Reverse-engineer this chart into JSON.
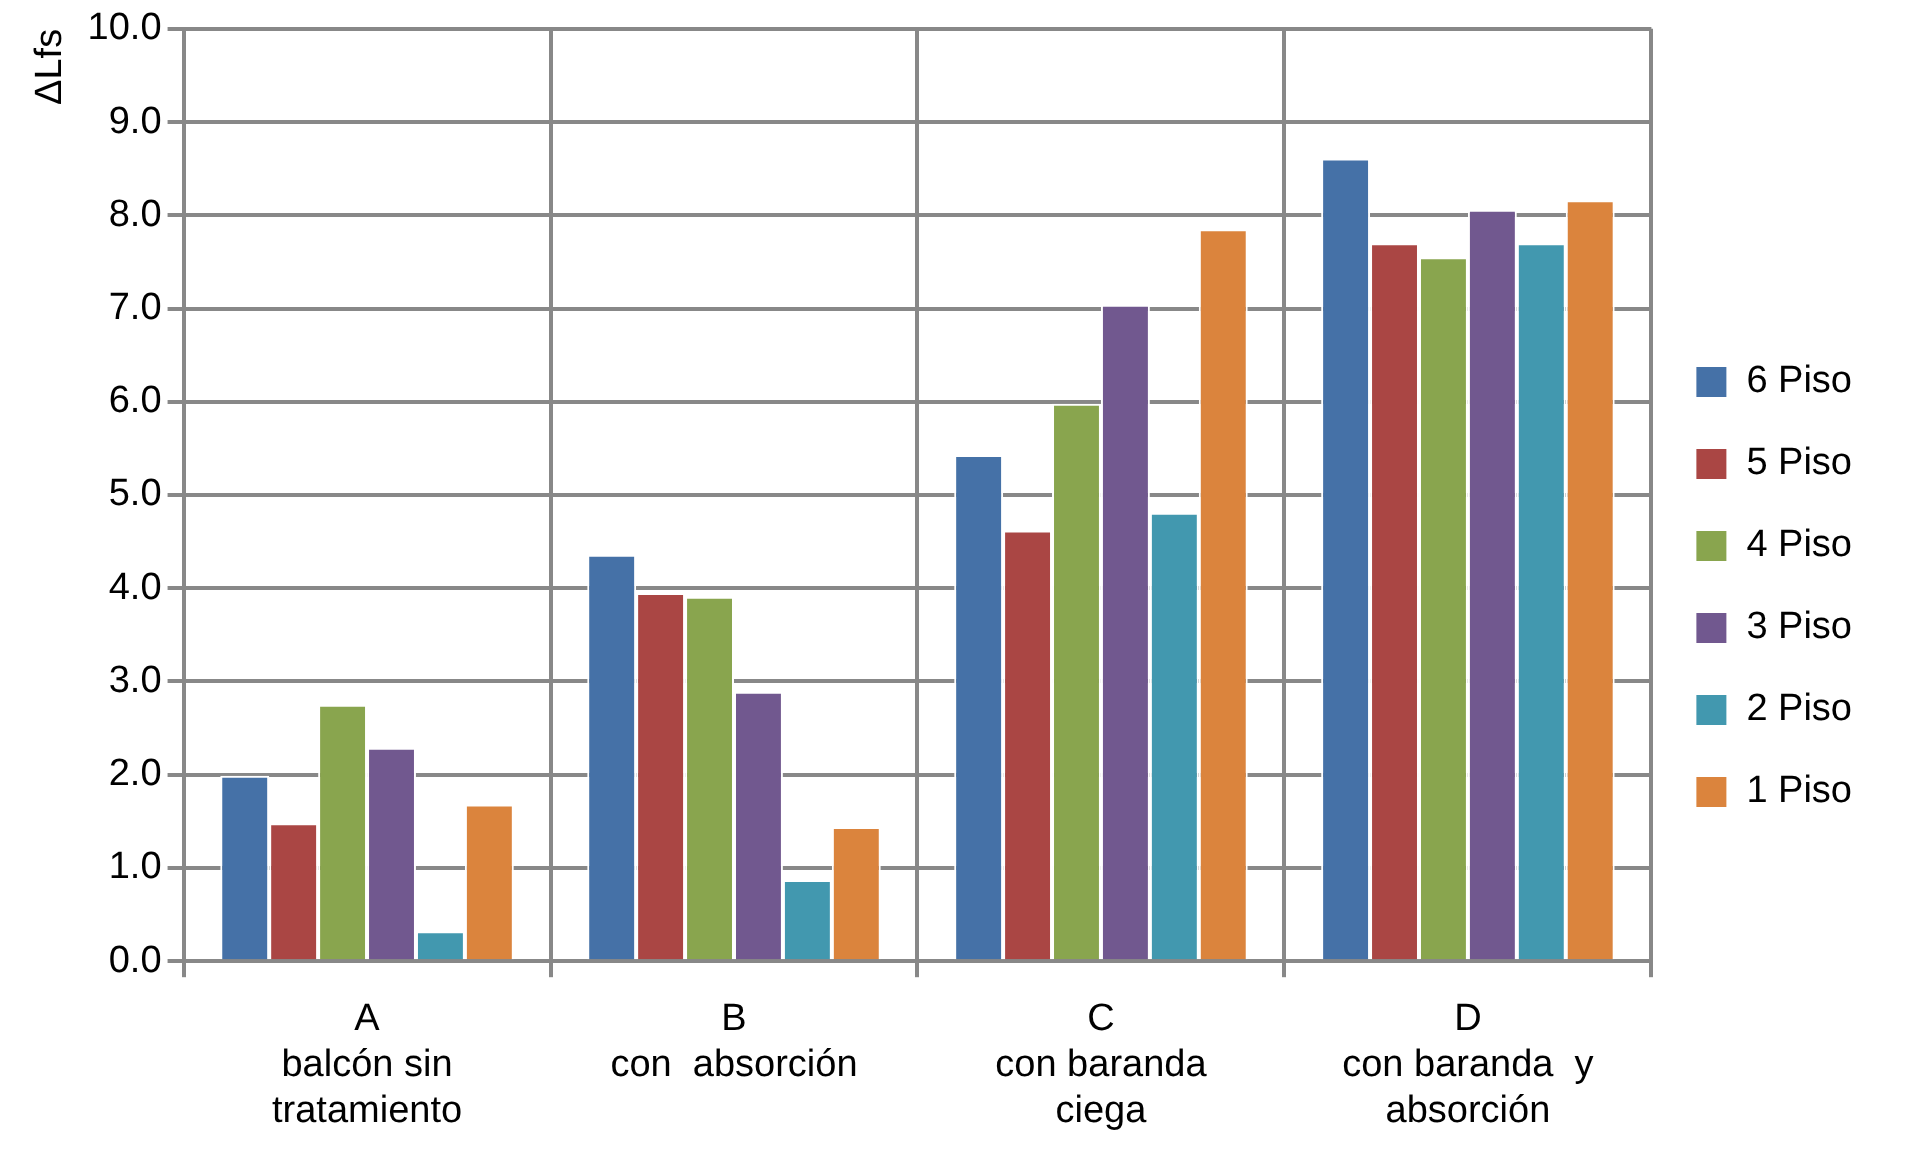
{
  "chart_data": {
    "type": "bar",
    "ylabel": "ΔLfs",
    "categories": [
      "A\nbalcón sin\ntratamiento",
      "B\ncon  absorción",
      "C\ncon baranda\nciega",
      "D\ncon baranda  y\nabsorción"
    ],
    "series": [
      {
        "name": "6 Piso",
        "color": "#4571a7",
        "values": [
          1.99,
          4.36,
          5.43,
          8.61
        ]
      },
      {
        "name": "5 Piso",
        "color": "#aa4644",
        "values": [
          1.48,
          3.95,
          4.62,
          7.7
        ]
      },
      {
        "name": "4 Piso",
        "color": "#89a54e",
        "values": [
          2.75,
          3.91,
          5.98,
          7.55
        ]
      },
      {
        "name": "3 Piso",
        "color": "#71588f",
        "values": [
          2.29,
          2.89,
          7.04,
          8.06
        ]
      },
      {
        "name": "2 Piso",
        "color": "#4298af",
        "values": [
          0.32,
          0.87,
          4.81,
          7.7
        ]
      },
      {
        "name": "1 Piso",
        "color": "#db843d",
        "values": [
          1.68,
          1.44,
          7.85,
          8.16
        ]
      }
    ],
    "ylim": [
      0,
      10
    ],
    "yticks": [
      {
        "value": 0,
        "label": "0.0"
      },
      {
        "value": 1,
        "label": "1.0"
      },
      {
        "value": 2,
        "label": "2.0"
      },
      {
        "value": 3,
        "label": "3.0"
      },
      {
        "value": 4,
        "label": "4.0"
      },
      {
        "value": 5,
        "label": "5.0"
      },
      {
        "value": 6,
        "label": "6.0"
      },
      {
        "value": 7,
        "label": "7.0"
      },
      {
        "value": 8,
        "label": "8.0"
      },
      {
        "value": 9,
        "label": "9.0"
      },
      {
        "value": 10,
        "label": "10.0"
      }
    ],
    "grid": true,
    "legend": "right"
  }
}
